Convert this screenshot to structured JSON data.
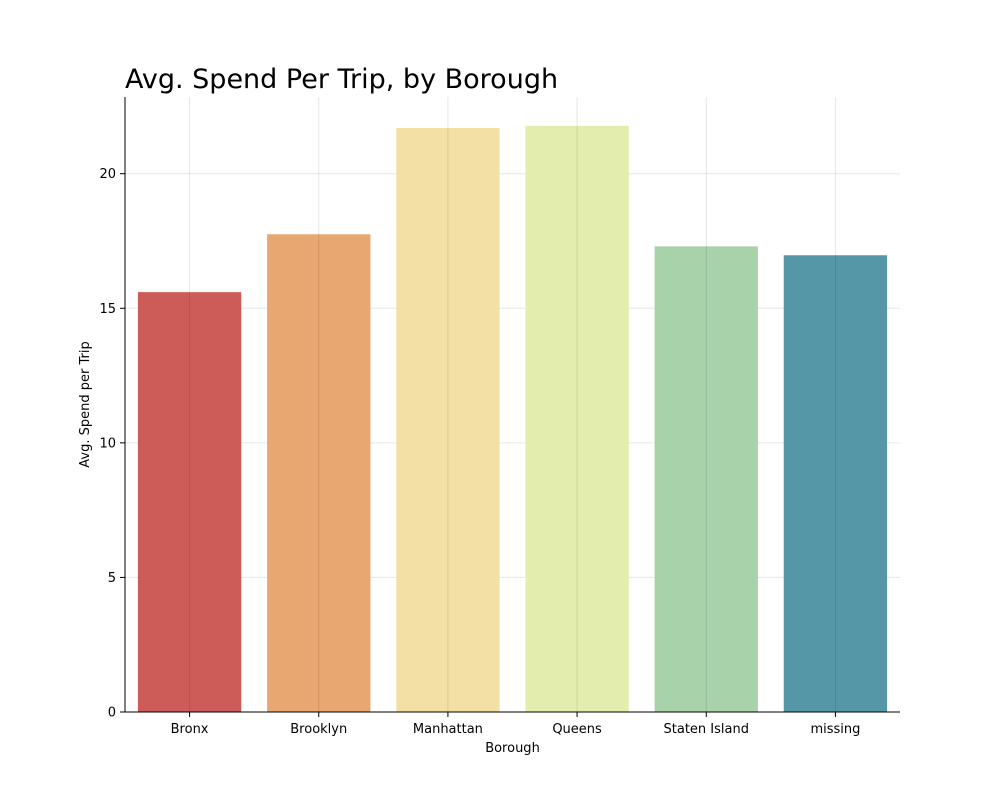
{
  "chart_data": {
    "type": "bar",
    "title": "Avg. Spend Per Trip, by Borough",
    "xlabel": "Borough",
    "ylabel": "Avg. Spend per Trip",
    "categories": [
      "Bronx",
      "Brooklyn",
      "Manhattan",
      "Queens",
      "Staten Island",
      "missing"
    ],
    "values": [
      15.6,
      17.75,
      21.7,
      21.78,
      17.3,
      16.97
    ],
    "colors": [
      "#cd5c58",
      "#e8a670",
      "#f2e0a5",
      "#e3eeae",
      "#a8d2aa",
      "#5597a7"
    ],
    "ylim": [
      0,
      22.85
    ],
    "yticks": [
      0,
      5,
      10,
      15,
      20
    ],
    "grid": true,
    "legend": "none"
  }
}
